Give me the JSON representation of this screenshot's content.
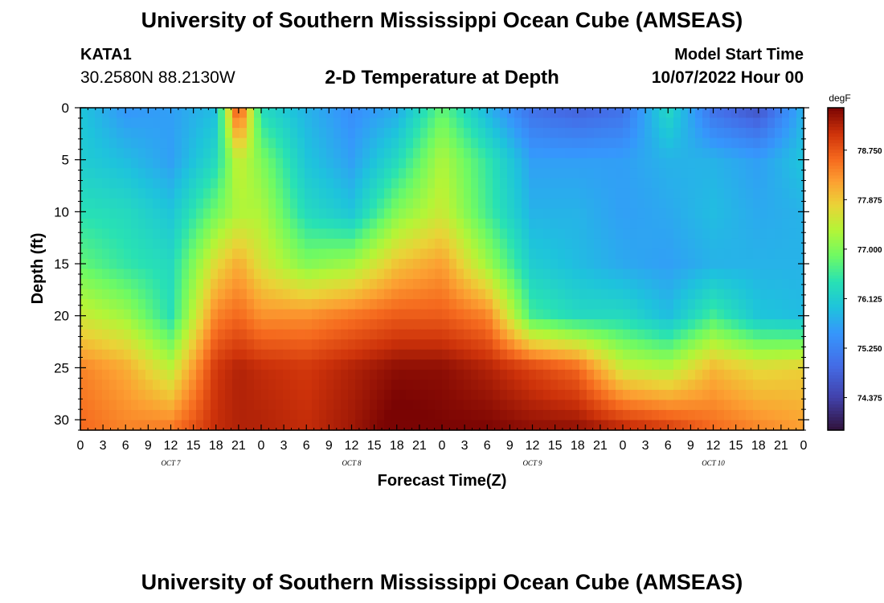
{
  "header": {
    "title": "University of Southern Mississippi Ocean Cube (AMSEAS)",
    "station": "KATA1",
    "coords": "30.2580N  88.2130W",
    "plot_title": "2-D Temperature at Depth",
    "model_start_label": "Model Start Time",
    "model_start_value": "10/07/2022 Hour 00"
  },
  "footer": {
    "title": "University of Southern Mississippi Ocean Cube (AMSEAS)"
  },
  "chart_data": {
    "type": "heatmap",
    "title": "2-D Temperature at Depth",
    "xlabel": "Forecast Time(Z)",
    "ylabel": "Depth (ft)",
    "x_tick_labels": [
      "0",
      "3",
      "6",
      "9",
      "12",
      "15",
      "18",
      "21",
      "0",
      "3",
      "6",
      "9",
      "12",
      "15",
      "18",
      "21",
      "0",
      "3",
      "6",
      "9",
      "12",
      "15",
      "18",
      "21",
      "0",
      "3",
      "6",
      "9",
      "12",
      "15",
      "18",
      "21",
      "0"
    ],
    "day_labels": [
      "OCT 7",
      "OCT 8",
      "OCT 9",
      "OCT 10"
    ],
    "y_ticks": [
      0,
      5,
      10,
      15,
      20,
      25,
      30
    ],
    "ylim": [
      0,
      31
    ],
    "colorbar": {
      "unit": "degF",
      "ticks": [
        "78.750",
        "77.875",
        "77.000",
        "76.125",
        "75.250",
        "74.375"
      ],
      "range": [
        73.8,
        79.5
      ]
    },
    "hours": [
      0,
      6,
      12,
      18,
      21,
      24,
      30,
      36,
      42,
      48,
      54,
      60,
      66,
      72,
      78,
      84,
      90,
      96
    ],
    "depths": [
      0,
      5,
      10,
      15,
      20,
      25,
      31
    ],
    "values": [
      [
        76.0,
        75.5,
        75.6,
        75.9,
        79.0,
        76.3,
        75.8,
        75.4,
        75.7,
        76.8,
        75.8,
        75.0,
        74.8,
        75.0,
        76.3,
        75.0,
        74.6,
        75.8
      ],
      [
        76.1,
        75.9,
        75.6,
        76.3,
        77.5,
        77.0,
        76.0,
        75.6,
        76.3,
        77.3,
        76.5,
        75.6,
        75.6,
        75.6,
        75.8,
        75.8,
        75.6,
        76.0
      ],
      [
        76.4,
        76.3,
        76.0,
        76.9,
        77.3,
        77.3,
        76.3,
        76.0,
        77.0,
        77.5,
        76.6,
        75.8,
        75.8,
        75.6,
        75.7,
        75.9,
        75.7,
        75.8
      ],
      [
        76.8,
        76.5,
        76.3,
        77.7,
        78.1,
        77.6,
        77.0,
        77.2,
        77.9,
        78.2,
        77.2,
        76.1,
        75.9,
        75.7,
        75.6,
        75.8,
        75.8,
        75.8
      ],
      [
        77.5,
        77.2,
        76.4,
        78.4,
        78.6,
        78.3,
        78.3,
        78.5,
        78.7,
        78.7,
        78.4,
        76.6,
        76.3,
        76.3,
        75.9,
        76.6,
        76.0,
        75.9
      ],
      [
        78.4,
        78.1,
        77.4,
        79.0,
        79.2,
        79.1,
        79.0,
        79.2,
        79.4,
        79.4,
        79.2,
        78.9,
        78.6,
        77.5,
        77.3,
        78.0,
        77.7,
        77.8
      ],
      [
        78.6,
        78.4,
        78.5,
        79.1,
        79.2,
        79.2,
        79.1,
        79.3,
        79.6,
        79.5,
        79.5,
        79.4,
        79.4,
        79.2,
        79.0,
        78.6,
        78.4,
        78.2
      ]
    ]
  }
}
